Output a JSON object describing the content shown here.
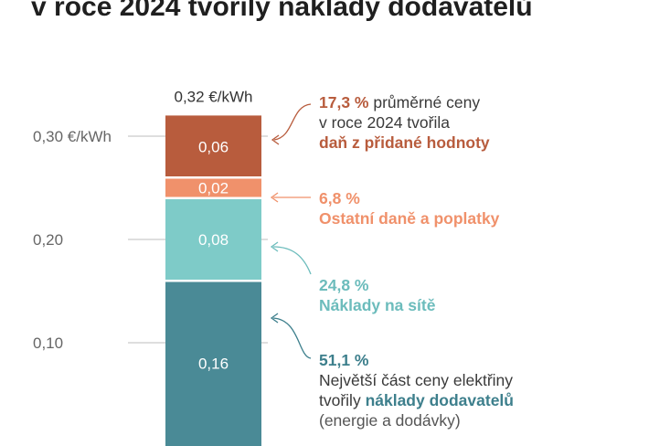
{
  "title": "v roce 2024 tvořily náklady dodavatelů",
  "chart_data": {
    "type": "bar",
    "stacked": true,
    "unit": "€/kWh",
    "total_label": "0,32 €/kWh",
    "y_ticks": [
      {
        "value": 0.3,
        "label": "0,30 €/kWh"
      },
      {
        "value": 0.2,
        "label": "0,20"
      },
      {
        "value": 0.1,
        "label": "0,10"
      }
    ],
    "segments": [
      {
        "value": 0.16,
        "label": "0,16",
        "color": "#4a8a96",
        "pct": "51,1 %"
      },
      {
        "value": 0.08,
        "label": "0,08",
        "color": "#7ecbc8",
        "pct": "24,8 %"
      },
      {
        "value": 0.02,
        "label": "0,02",
        "color": "#f0916b",
        "pct": "6,8 %"
      },
      {
        "value": 0.06,
        "label": "0,06",
        "color": "#b85c3d",
        "pct": "17,3 %"
      }
    ]
  },
  "annotations": {
    "vat": {
      "pct": "17,3 %",
      "line1_rest": " průměrné ceny",
      "line2": "v roce 2024 tvořila",
      "line3": "daň z přidané hodnoty",
      "color": "#b85c3d"
    },
    "other": {
      "pct": "6,8 %",
      "line2": "Ostatní daně a poplatky",
      "color": "#f0916b"
    },
    "network": {
      "pct": "24,8 %",
      "line2": "Náklady na sítě",
      "color": "#6cbcbc"
    },
    "supplier": {
      "pct": "51,1 %",
      "line2": "Největší část ceny elektřiny",
      "line3_pre": "tvořily ",
      "line3_bold": "náklady dodavatelů",
      "line4": "(energie a dodávky)",
      "color": "#3d7f8c"
    }
  }
}
